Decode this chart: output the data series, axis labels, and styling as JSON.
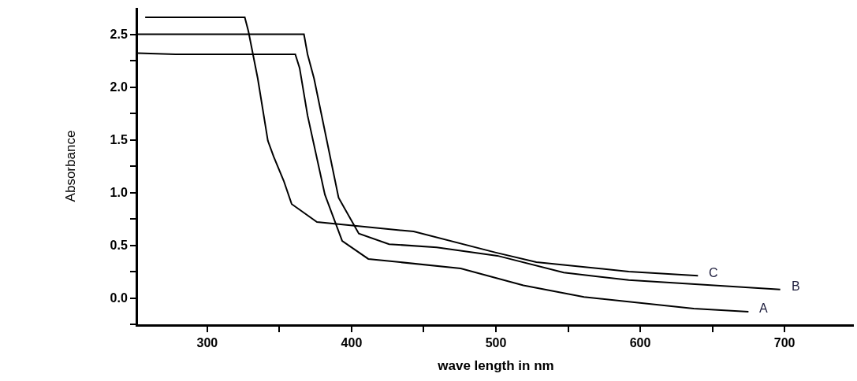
{
  "chart_data": {
    "type": "line",
    "xlabel": "wave length in nm",
    "ylabel": "Absorbance",
    "xlim": [
      252,
      748
    ],
    "ylim": [
      -0.25,
      2.75
    ],
    "xticks": [
      300,
      {
        "value": 350,
        "label": null
      },
      400,
      {
        "value": 450,
        "label": null
      },
      500,
      {
        "value": 550,
        "label": null
      },
      600,
      {
        "value": 650,
        "label": null
      },
      700
    ],
    "yticks": [
      {
        "value": -0.25,
        "label": null
      },
      {
        "value": 0,
        "label": "0.0"
      },
      {
        "value": 0.25,
        "label": null
      },
      0.5,
      {
        "value": 0.75,
        "label": null
      },
      {
        "value": 1,
        "label": "1.0"
      },
      {
        "value": 1.25,
        "label": null
      },
      1.5,
      {
        "value": 1.75,
        "label": null
      },
      {
        "value": 2,
        "label": "2.0"
      },
      {
        "value": 2.25,
        "label": null
      },
      2.5
    ],
    "legend": false,
    "marker": "none",
    "line_style": "solid",
    "series": [
      {
        "name": "A",
        "color": "#000000",
        "x": [
          252,
          278,
          361,
          364,
          369.5,
          381.5,
          393.5,
          411.6,
          475.6,
          519,
          561,
          637,
          675
        ],
        "values": [
          2.32,
          2.31,
          2.31,
          2.18,
          1.73,
          0.98,
          0.54,
          0.37,
          0.28,
          0.12,
          0.01,
          -0.1,
          -0.13
        ]
      },
      {
        "name": "B",
        "color": "#000000",
        "x": [
          252,
          367,
          369.5,
          374,
          391,
          405,
          426,
          459,
          501,
          547,
          592,
          697
        ],
        "values": [
          2.5,
          2.5,
          2.31,
          2.08,
          0.95,
          0.61,
          0.51,
          0.48,
          0.4,
          0.24,
          0.17,
          0.08
        ]
      },
      {
        "name": "C",
        "color": "#000000",
        "x": [
          257,
          326,
          328.5,
          335,
          342,
          346,
          353,
          358.5,
          376,
          443,
          500,
          528,
          592,
          640
        ],
        "values": [
          2.66,
          2.66,
          2.53,
          2.08,
          1.49,
          1.34,
          1.11,
          0.89,
          0.72,
          0.63,
          0.43,
          0.34,
          0.25,
          0.21
        ]
      }
    ]
  }
}
